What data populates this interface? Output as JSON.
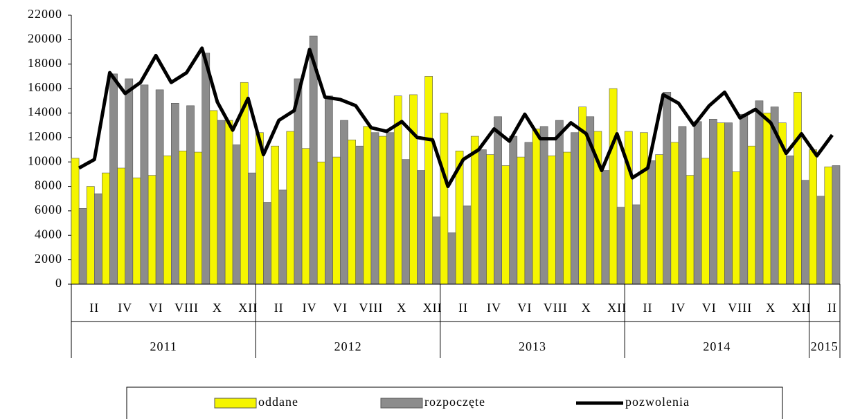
{
  "chart_data": {
    "type": "bar_line",
    "categories": [
      null,
      "II",
      null,
      "IV",
      null,
      "VI",
      null,
      "VIII",
      null,
      "X",
      null,
      "XII",
      null,
      "II",
      null,
      "IV",
      null,
      "VI",
      null,
      "VIII",
      null,
      "X",
      null,
      "XII",
      null,
      "II",
      null,
      "IV",
      null,
      "VI",
      null,
      "VIII",
      null,
      "X",
      null,
      "XII",
      null,
      "II",
      null,
      "IV",
      null,
      "VI",
      null,
      "VIII",
      null,
      "X",
      null,
      "XII",
      null,
      "II"
    ],
    "x_groups": [
      {
        "label": "2011",
        "span": 12
      },
      {
        "label": "2012",
        "span": 12
      },
      {
        "label": "2013",
        "span": 12
      },
      {
        "label": "2014",
        "span": 12
      },
      {
        "label": "2015",
        "span": 2
      }
    ],
    "series": [
      {
        "name": "oddane",
        "kind": "bar",
        "color": "#f5f500",
        "values": [
          10300,
          8000,
          9100,
          9500,
          8700,
          8900,
          10500,
          10900,
          10800,
          14200,
          13400,
          16500,
          12400,
          11300,
          12500,
          11100,
          10000,
          10400,
          11800,
          12900,
          12100,
          15400,
          15500,
          17000,
          14000,
          10900,
          12100,
          10600,
          9700,
          10400,
          12700,
          10500,
          10800,
          14500,
          12500,
          16000,
          12500,
          12400,
          10600,
          11600,
          8900,
          10300,
          13200,
          9200,
          11300,
          14000,
          13200,
          15700,
          11000,
          9600
        ]
      },
      {
        "name": "rozpoczęte",
        "kind": "bar",
        "color": "#8c8c8c",
        "values": [
          6200,
          7400,
          17200,
          16800,
          16300,
          15900,
          14800,
          14600,
          18900,
          13400,
          11400,
          9100,
          6700,
          7700,
          16800,
          20300,
          15400,
          13400,
          11300,
          12400,
          12400,
          10200,
          9300,
          5500,
          4200,
          6400,
          11000,
          13700,
          12100,
          11600,
          12900,
          13400,
          12400,
          13700,
          9300,
          6300,
          6500,
          10100,
          15700,
          12900,
          13300,
          13500,
          13200,
          13900,
          15000,
          14500,
          10500,
          8500,
          7200,
          9700
        ]
      },
      {
        "name": "pozwolenia",
        "kind": "line",
        "color": "#000000",
        "values": [
          9500,
          10200,
          17300,
          15600,
          16500,
          18700,
          16500,
          17300,
          19300,
          14900,
          12600,
          15200,
          10600,
          13400,
          14200,
          19200,
          15300,
          15100,
          14600,
          12800,
          12500,
          13300,
          12000,
          11800,
          8000,
          10200,
          11000,
          12700,
          11700,
          13900,
          11900,
          11900,
          13200,
          12300,
          9300,
          12300,
          8700,
          9500,
          15500,
          14800,
          13000,
          14600,
          15700,
          13600,
          14300,
          13200,
          10700,
          12300,
          10500,
          12200
        ]
      }
    ],
    "ylim": [
      0,
      22000
    ],
    "yticks": [
      0,
      2000,
      4000,
      6000,
      8000,
      10000,
      12000,
      14000,
      16000,
      18000,
      20000,
      22000
    ]
  }
}
